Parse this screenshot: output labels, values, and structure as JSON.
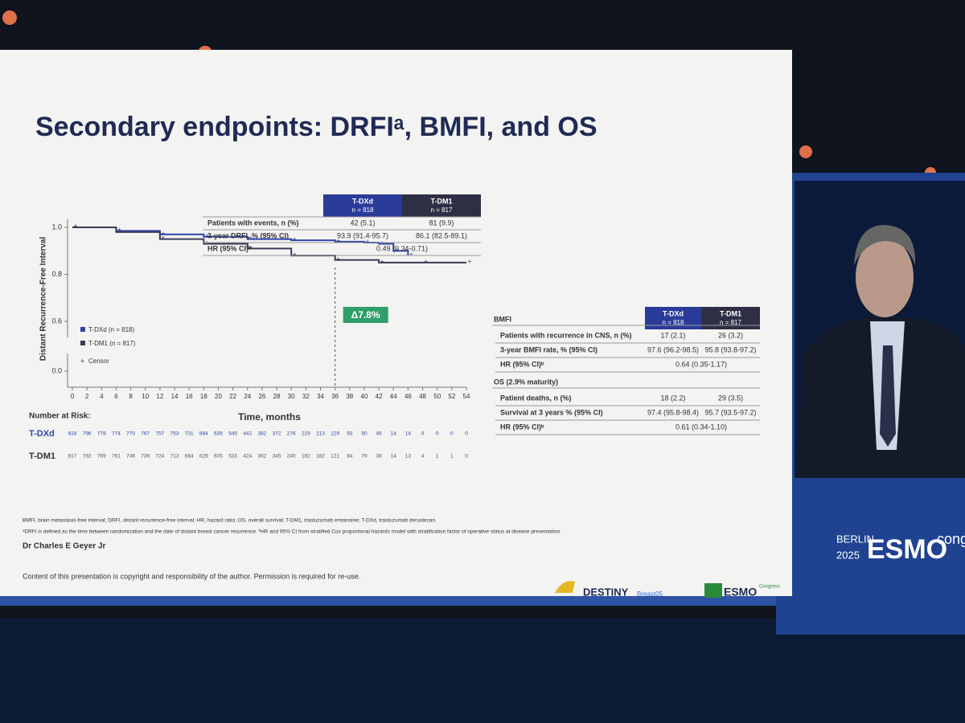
{
  "slide": {
    "title": "Secondary endpoints: DRFIᵃ, BMFI, and OS",
    "km": {
      "y_label": "Distant Recurrence-Free Interval",
      "x_label": "Time, months",
      "xlim": [
        0,
        54
      ],
      "xticks": [
        0,
        2,
        4,
        6,
        8,
        10,
        12,
        14,
        16,
        18,
        20,
        22,
        24,
        26,
        28,
        30,
        32,
        34,
        36,
        38,
        40,
        42,
        44,
        46,
        48,
        50,
        52,
        54
      ],
      "ylim": [
        0.6,
        1
      ],
      "yticks": [
        {
          "value": 0,
          "label": "0.0"
        },
        0.6,
        0.8,
        {
          "value": 1,
          "label": "1.0"
        }
      ],
      "series": [
        {
          "name": "T-DXd (n = 818)",
          "color": "#2f46a8",
          "x": [
            0,
            6,
            12,
            18,
            24,
            30,
            36,
            40,
            42,
            44,
            46
          ],
          "y": [
            1,
            0.985,
            0.97,
            0.96,
            0.95,
            0.945,
            0.939,
            0.935,
            0.93,
            0.9,
            0.88
          ]
        },
        {
          "name": "T-DM1 (n = 817)",
          "color": "#3b3b58",
          "x": [
            0,
            6,
            12,
            18,
            24,
            30,
            36,
            42,
            48,
            54
          ],
          "y": [
            1,
            0.98,
            0.95,
            0.93,
            0.91,
            0.88,
            0.861,
            0.85,
            0.85,
            0.85
          ]
        }
      ],
      "censor_label": "Censor",
      "annotation": "Δ7.8%",
      "annotation_x": 36
    },
    "risk": {
      "heading": "Number at Risk:",
      "rows": [
        {
          "name": "T-DXd",
          "values": [
            818,
            796,
            778,
            774,
            770,
            767,
            757,
            753,
            731,
            684,
            635,
            545,
            442,
            382,
            372,
            276,
            219,
            213,
            129,
            93,
            90,
            45,
            14,
            14,
            0,
            0,
            0,
            0
          ]
        },
        {
          "name": "T-DM1",
          "values": [
            817,
            792,
            769,
            761,
            746,
            739,
            724,
            713,
            684,
            629,
            605,
            533,
            424,
            362,
            345,
            240,
            192,
            182,
            121,
            84,
            79,
            38,
            14,
            13,
            4,
            1,
            1,
            0
          ]
        }
      ]
    },
    "drfi_table": {
      "headers": [
        [
          "T-DXd",
          "n = 818"
        ],
        [
          "T-DM1",
          "n = 817"
        ]
      ],
      "rows": [
        {
          "label": "Patients with events, n (%)",
          "cells": [
            "42 (5.1)",
            "81 (9.9)"
          ]
        },
        {
          "label": "3-year DRFI, % (95% CI)",
          "cells": [
            "93.9 (91.4-95.7)",
            "86.1 (82.5-89.1)"
          ]
        },
        {
          "label": "HR (95% CI)ᵇ",
          "cells": [
            "0.49 (0.34-0.71)"
          ]
        }
      ]
    },
    "bmfi_table": {
      "headers": [
        [
          "T-DXd",
          "n = 818"
        ],
        [
          "T-DM1",
          "n = 817"
        ]
      ],
      "sections": [
        {
          "title": "BMFI",
          "rows": [
            {
              "label": "Patients with recurrence in CNS, n (%)",
              "cells": [
                "17 (2.1)",
                "26 (3.2)"
              ]
            },
            {
              "label": "3-year BMFI rate, % (95% CI)",
              "cells": [
                "97.6 (96.2-98.5)",
                "95.8 (93.8-97.2)"
              ]
            },
            {
              "label": "HR (95% CI)ᵇ",
              "cells": [
                "0.64 (0.35-1.17)"
              ]
            }
          ]
        },
        {
          "title": "OS (2.9% maturity)",
          "rows": [
            {
              "label": "Patient deaths, n (%)",
              "cells": [
                "18 (2.2)",
                "29 (3.5)"
              ]
            },
            {
              "label": "Survival at 3 years % (95% CI)",
              "cells": [
                "97.4 (95.8-98.4)",
                "95.7 (93.5-97.2)"
              ]
            },
            {
              "label": "HR (95% CI)ᵇ",
              "cells": [
                "0.61 (0.34-1.10)"
              ]
            }
          ]
        }
      ]
    },
    "footnotes": [
      "BMFI, brain metastasis-free interval; DRFI, distant recurrence-free interval; HR, hazard ratio; OS, overall survival; T-DM1, trastuzumab emtansine; T-DXd, trastuzumab deruxtecan.",
      "ᵃDRFI is defined as the time between randomization and the date of distant breast cancer recurrence. ᵇHR and 95% CI from stratified Cox proportional hazards model with stratification factor of operative status at disease presentation."
    ],
    "presenter": "Dr Charles E Geyer Jr",
    "copyright": "Content of this presentation is copyright and responsibility of the author. Permission is required for re-use.",
    "logos": {
      "destiny": "DESTINY",
      "breast": "Breast05",
      "esmo": "ESMO",
      "esmo_sub": "Congress"
    }
  },
  "stage": {
    "city": "BERLIN",
    "year": "2025",
    "brand": "ESMO",
    "suffix": "congress"
  }
}
